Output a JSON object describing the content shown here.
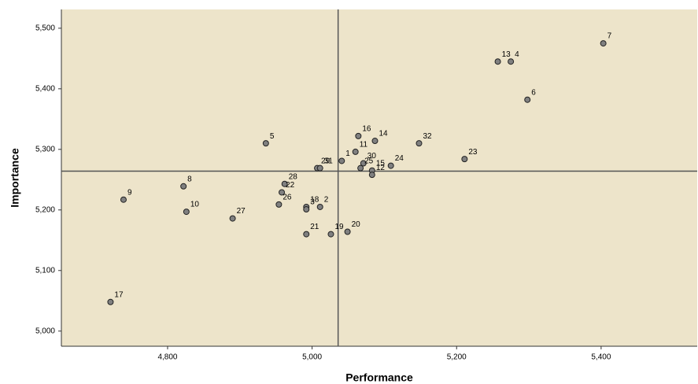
{
  "chart_data": {
    "type": "scatter",
    "x_label": "Performance",
    "y_label": "Importance",
    "point_labels": [
      "7",
      "13",
      "4",
      "6",
      "16",
      "14",
      "32",
      "5",
      "11",
      "23",
      "1",
      "30",
      "29",
      "31",
      "24",
      "25",
      "15",
      "12",
      "28",
      "8",
      "22",
      "9",
      "26",
      "18",
      "3",
      "2",
      "19",
      "21",
      "20",
      "10",
      "27",
      "17"
    ],
    "x": [
      5403,
      5257,
      5275,
      5298,
      5064,
      5087,
      5148,
      4936,
      5060,
      5211,
      5041,
      5071,
      5007,
      5011,
      5109,
      5067,
      5083,
      5083,
      4962,
      4822,
      4958,
      4739,
      4954,
      4992,
      4992,
      5011,
      5026,
      4992,
      5049,
      4826,
      4890,
      4721
    ],
    "values": [
      5475,
      5445,
      5445,
      5382,
      5322,
      5314,
      5310,
      5310,
      5296,
      5284,
      5281,
      5277,
      5269,
      5269,
      5273,
      5269,
      5265,
      5258,
      5243,
      5239,
      5229,
      5217,
      5209,
      5205,
      5201,
      5205,
      5160,
      5160,
      5164,
      5197,
      5186,
      5048
    ],
    "color": "#808080",
    "background": "#ede4ca",
    "xlim": [
      4653,
      5533
    ],
    "ylim": [
      4975,
      5531
    ],
    "xticks": [
      {
        "value": 4800,
        "label": "4,800"
      },
      {
        "value": 5000,
        "label": "5,000"
      },
      {
        "value": 5200,
        "label": "5,200"
      },
      {
        "value": 5400,
        "label": "5,400"
      }
    ],
    "yticks": [
      {
        "value": 5000,
        "label": "5,000"
      },
      {
        "value": 5100,
        "label": "5,100"
      },
      {
        "value": 5200,
        "label": "5,200"
      },
      {
        "value": 5300,
        "label": "5,300"
      },
      {
        "value": 5400,
        "label": "5,400"
      },
      {
        "value": 5500,
        "label": "5,500"
      }
    ],
    "vline": 5036,
    "hline": 5264
  }
}
